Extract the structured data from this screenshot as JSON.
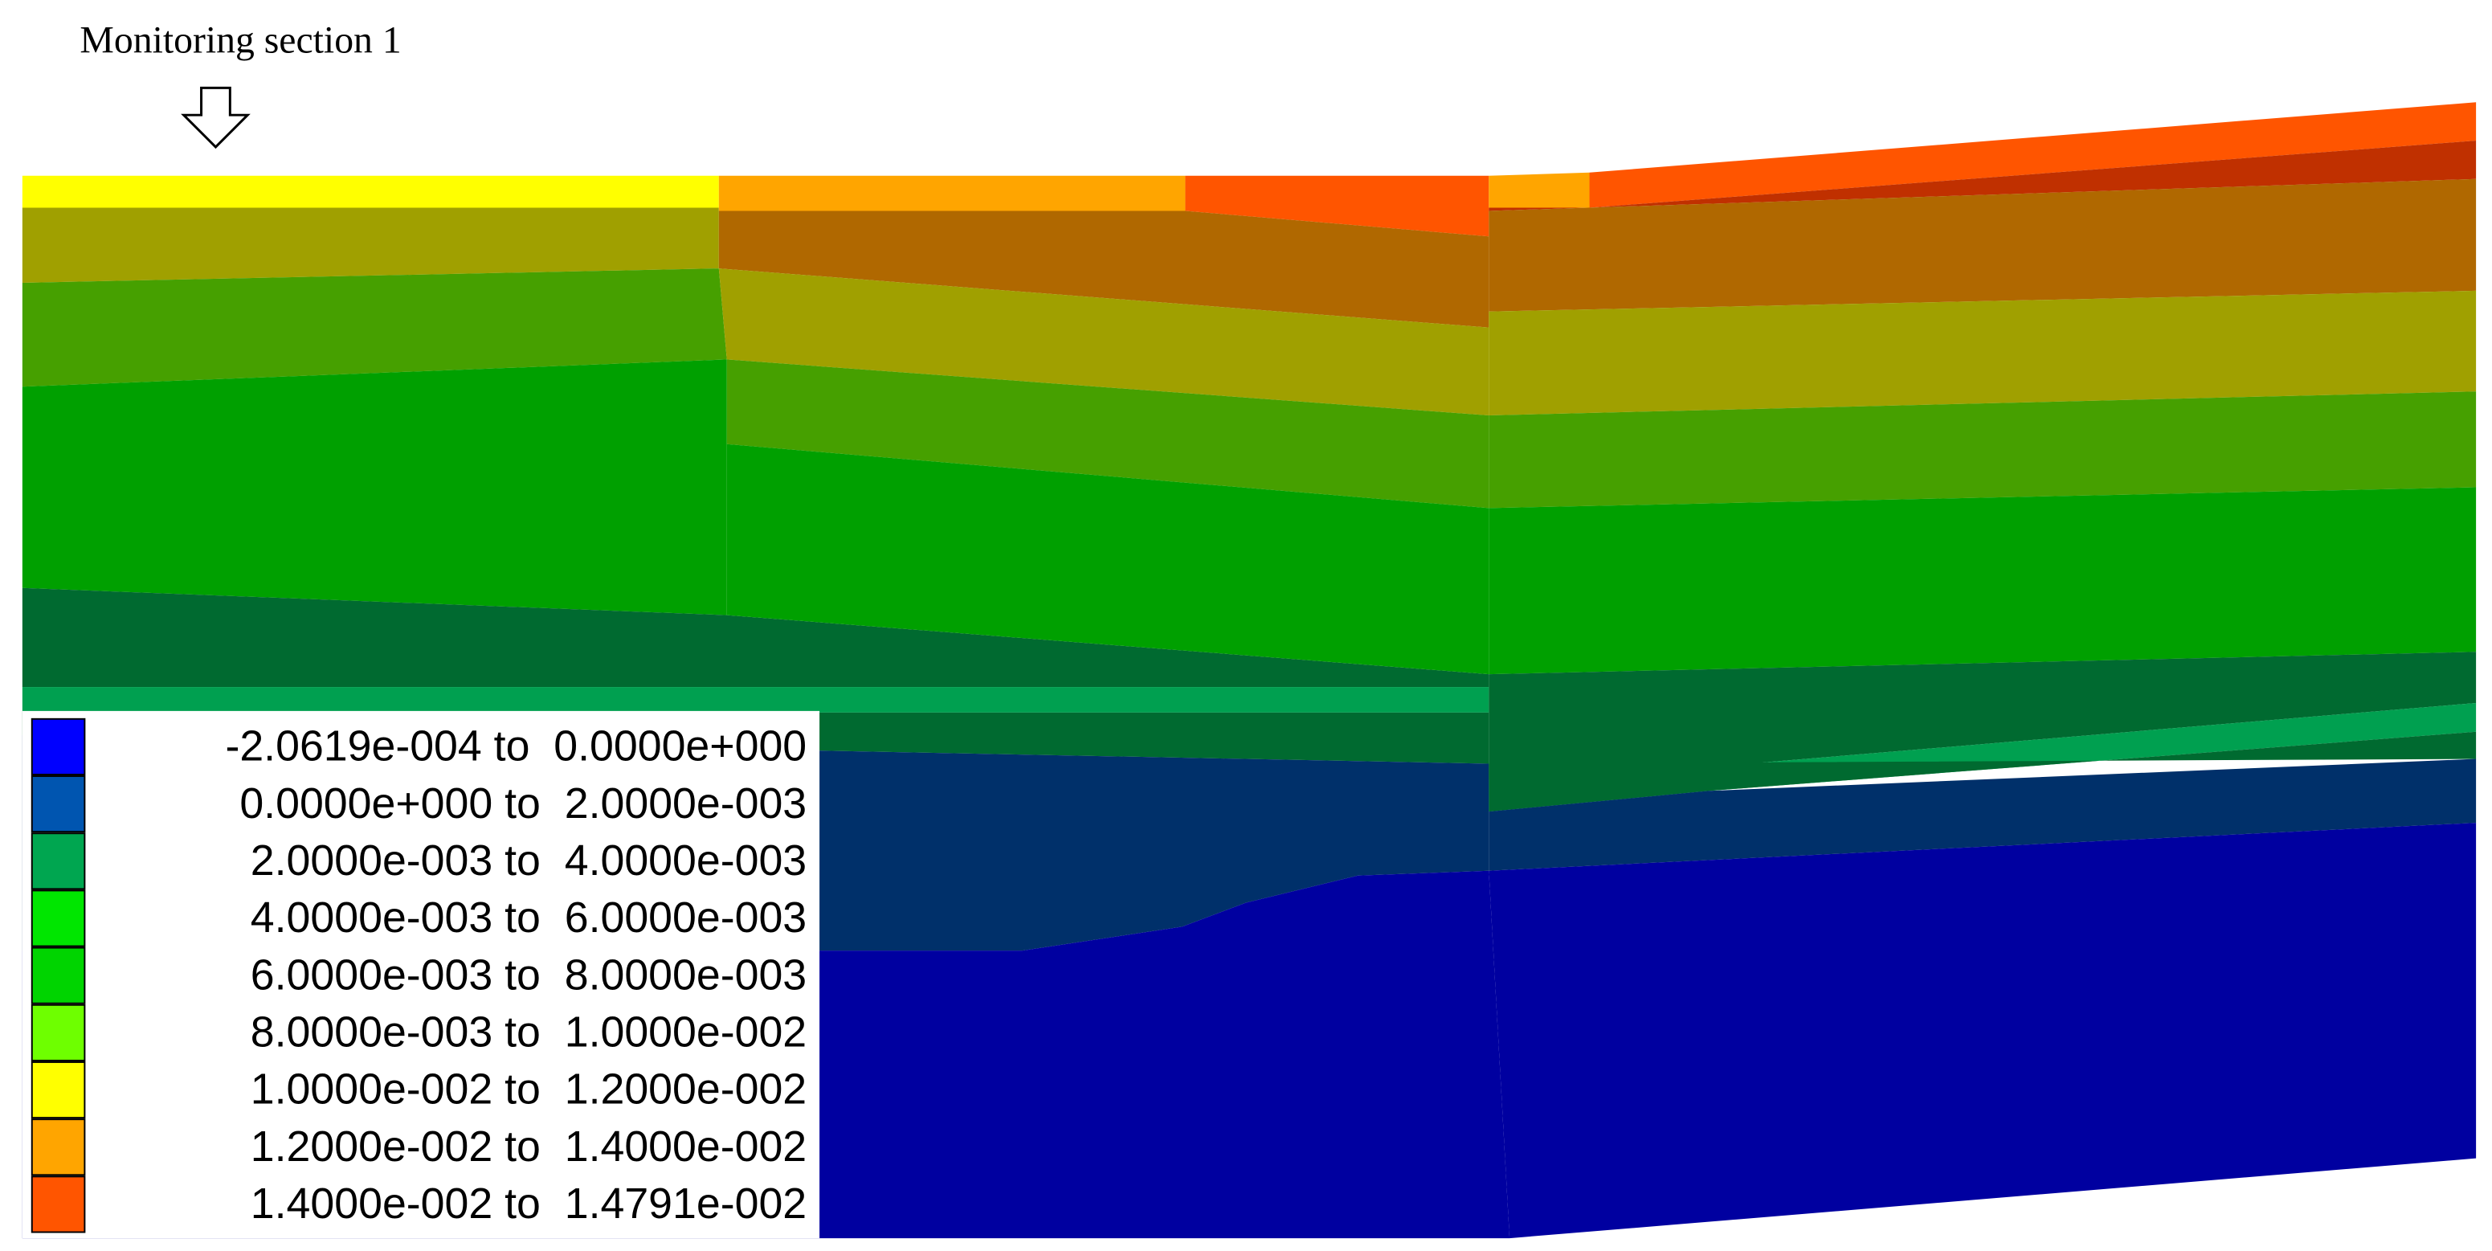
{
  "annotation": "Monitoring section 1",
  "legend": {
    "items": [
      {
        "label": "-2.0619e-004 to  0.0000e+000",
        "color": "#0000ff"
      },
      {
        "label": "0.0000e+000 to  2.0000e-003",
        "color": "#0055b0"
      },
      {
        "label": "2.0000e-003 to  4.0000e-003",
        "color": "#00a650"
      },
      {
        "label": "4.0000e-003 to  6.0000e-003",
        "color": "#00e600"
      },
      {
        "label": "6.0000e-003 to  8.0000e-003",
        "color": "#00d400"
      },
      {
        "label": "8.0000e-003 to  1.0000e-002",
        "color": "#6eff00"
      },
      {
        "label": "1.0000e-002 to  1.2000e-002",
        "color": "#ffff00"
      },
      {
        "label": "1.2000e-002 to  1.4000e-002",
        "color": "#ffa500"
      },
      {
        "label": "1.4000e-002 to  1.4791e-002",
        "color": "#ff5500"
      }
    ]
  }
}
